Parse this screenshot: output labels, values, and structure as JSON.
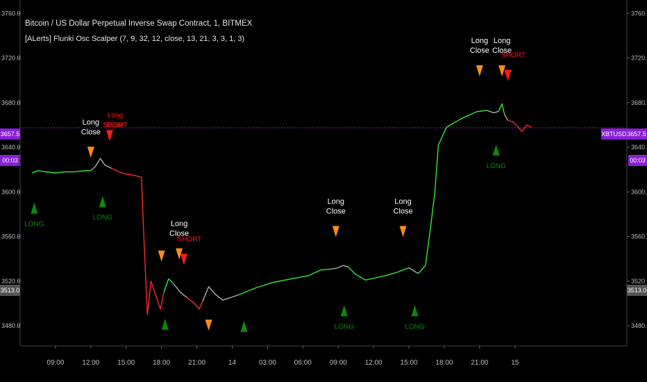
{
  "header": {
    "title": "Bitcoin / US Dollar Perpetual Inverse Swap Contract, 1, BITMEX",
    "indicator": "[ALerts] Flunki Osc Scalper  (7, 9, 32, 12, close, 13, 21, 3, 3, 1, 3)"
  },
  "colors": {
    "background": "#000000",
    "up": "#33ee33",
    "down": "#ff2a2a",
    "neutral": "#b0b0b0",
    "long_arrow": "#0a8a0a",
    "close_arrow": "#ff8c1a",
    "short_arrow": "#ff1a1a",
    "price_line": "#8a1fd6",
    "axis_text": "#bdbdbd"
  },
  "price_badge_left": {
    "price": "3657.5",
    "timer": "00:03"
  },
  "price_badge_right": {
    "symbol": "XBTUSD",
    "price": "3657.5",
    "timer": "00:03"
  },
  "y_labels": [
    "3760.0",
    "3720.0",
    "3680.0",
    "3640.0",
    "3600.0",
    "3560.0",
    "3520.0",
    "3480.0"
  ],
  "low_badge": "3513.0",
  "chart_data": {
    "type": "line",
    "title": "Bitcoin / US Dollar Perpetual Inverse Swap Contract, 1, BITMEX",
    "xlabel": "",
    "ylabel": "",
    "ylim": [
      3462,
      3772
    ],
    "grid": false,
    "x_ticks": [
      "09:00",
      "12:00",
      "15:00",
      "18:00",
      "21:00",
      "14",
      "03:00",
      "06:00",
      "09:00",
      "12:00",
      "15:00",
      "18:00",
      "21:00",
      "15"
    ],
    "y_ticks": [
      3760,
      3720,
      3680,
      3640,
      3600,
      3560,
      3520,
      3480
    ],
    "current_price": 3657.5,
    "segments": [
      {
        "color": "up",
        "points": [
          [
            7.0,
            3617
          ],
          [
            7.5,
            3619
          ],
          [
            8.2,
            3618
          ],
          [
            9.0,
            3617
          ],
          [
            9.8,
            3618
          ],
          [
            10.6,
            3618
          ],
          [
            11.4,
            3619
          ],
          [
            12.0,
            3619
          ]
        ]
      },
      {
        "color": "neutral",
        "points": [
          [
            12.0,
            3619
          ],
          [
            12.4,
            3623
          ],
          [
            12.8,
            3630
          ],
          [
            13.2,
            3624
          ],
          [
            13.6,
            3622
          ],
          [
            13.8,
            3621
          ]
        ]
      },
      {
        "color": "down",
        "points": [
          [
            13.8,
            3621
          ],
          [
            14.4,
            3618
          ],
          [
            15.0,
            3616
          ],
          [
            15.6,
            3615
          ],
          [
            16.0,
            3614
          ],
          [
            16.3,
            3613
          ],
          [
            16.5,
            3560
          ],
          [
            16.8,
            3490
          ],
          [
            17.1,
            3520
          ],
          [
            17.5,
            3508
          ],
          [
            17.9,
            3495
          ],
          [
            18.2,
            3510
          ]
        ]
      },
      {
        "color": "up",
        "points": [
          [
            18.2,
            3510
          ],
          [
            18.6,
            3522
          ],
          [
            19.0,
            3518
          ]
        ]
      },
      {
        "color": "neutral",
        "points": [
          [
            19.0,
            3518
          ],
          [
            19.6,
            3510
          ],
          [
            20.2,
            3505
          ]
        ]
      },
      {
        "color": "down",
        "points": [
          [
            20.2,
            3505
          ],
          [
            20.8,
            3500
          ],
          [
            21.2,
            3495
          ],
          [
            21.5,
            3502
          ]
        ]
      },
      {
        "color": "neutral",
        "points": [
          [
            21.5,
            3502
          ],
          [
            22.0,
            3515
          ],
          [
            22.6,
            3508
          ],
          [
            23.2,
            3503
          ],
          [
            23.8,
            3505
          ],
          [
            24.6,
            3508
          ]
        ]
      },
      {
        "color": "up",
        "points": [
          [
            24.6,
            3508
          ],
          [
            26.0,
            3514
          ],
          [
            27.5,
            3519
          ],
          [
            29.0,
            3522
          ],
          [
            30.5,
            3525
          ],
          [
            31.5,
            3530
          ],
          [
            32.5,
            3531
          ]
        ]
      },
      {
        "color": "neutral",
        "points": [
          [
            32.5,
            3531
          ],
          [
            33.0,
            3532
          ],
          [
            33.4,
            3534
          ],
          [
            33.8,
            3533
          ]
        ]
      },
      {
        "color": "up",
        "points": [
          [
            33.8,
            3533
          ],
          [
            34.5,
            3526
          ],
          [
            35.3,
            3521
          ],
          [
            36.2,
            3523
          ],
          [
            37.0,
            3525
          ],
          [
            38.0,
            3528
          ],
          [
            39.0,
            3532
          ]
        ]
      },
      {
        "color": "neutral",
        "points": [
          [
            39.0,
            3532
          ],
          [
            39.6,
            3528
          ],
          [
            39.8,
            3527
          ]
        ]
      },
      {
        "color": "up",
        "points": [
          [
            39.8,
            3527
          ],
          [
            40.4,
            3534
          ],
          [
            40.8,
            3565
          ],
          [
            41.2,
            3600
          ],
          [
            41.5,
            3642
          ],
          [
            42.2,
            3658
          ],
          [
            43.5,
            3666
          ],
          [
            44.8,
            3672
          ],
          [
            45.6,
            3673
          ]
        ]
      },
      {
        "color": "neutral",
        "points": [
          [
            45.6,
            3673
          ],
          [
            46.2,
            3671
          ],
          [
            46.6,
            3672
          ]
        ]
      },
      {
        "color": "up",
        "points": [
          [
            46.6,
            3672
          ],
          [
            46.9,
            3679
          ],
          [
            47.1,
            3670
          ]
        ]
      },
      {
        "color": "neutral",
        "points": [
          [
            47.1,
            3670
          ],
          [
            47.4,
            3664
          ]
        ]
      },
      {
        "color": "down",
        "points": [
          [
            47.4,
            3664
          ],
          [
            47.8,
            3663
          ],
          [
            48.2,
            3659
          ],
          [
            48.6,
            3654
          ],
          [
            49.0,
            3660
          ],
          [
            49.4,
            3658
          ]
        ]
      }
    ],
    "annotations": [
      {
        "x": 7.2,
        "kind": "long",
        "price": 3588,
        "label": "LONG"
      },
      {
        "x": 12.0,
        "kind": "close",
        "price": 3633,
        "label": "Long\nClose"
      },
      {
        "x": 13.0,
        "kind": "long",
        "price": 3594,
        "label": "LONG"
      },
      {
        "x": 13.6,
        "kind": "short",
        "price": 3648,
        "label": "Long\nClose"
      },
      {
        "x": 13.6,
        "kind": "short_label",
        "price": 3648,
        "label": "SHORT"
      },
      {
        "x": 18.0,
        "kind": "close",
        "price": 3540,
        "label": ""
      },
      {
        "x": 18.3,
        "kind": "long",
        "price": 3484,
        "label": ""
      },
      {
        "x": 19.5,
        "kind": "close",
        "price": 3542,
        "label": "Long\nClose"
      },
      {
        "x": 19.9,
        "kind": "short",
        "price": 3537,
        "label": "SHORT"
      },
      {
        "x": 22.0,
        "kind": "close",
        "price": 3478,
        "label": ""
      },
      {
        "x": 25.0,
        "kind": "long",
        "price": 3482,
        "label": ""
      },
      {
        "x": 32.8,
        "kind": "close",
        "price": 3562,
        "label": "Long\nClose"
      },
      {
        "x": 33.5,
        "kind": "long",
        "price": 3496,
        "label": "LONG"
      },
      {
        "x": 38.5,
        "kind": "close",
        "price": 3562,
        "label": "Long\nClose"
      },
      {
        "x": 39.5,
        "kind": "long",
        "price": 3496,
        "label": "LONG"
      },
      {
        "x": 45.0,
        "kind": "close",
        "price": 3706,
        "label": "Long\nClose"
      },
      {
        "x": 46.4,
        "kind": "long",
        "price": 3640,
        "label": "LONG"
      },
      {
        "x": 46.9,
        "kind": "close",
        "price": 3706,
        "label": "Long\nClose"
      },
      {
        "x": 47.4,
        "kind": "short",
        "price": 3702,
        "label": "SHORT"
      }
    ]
  }
}
